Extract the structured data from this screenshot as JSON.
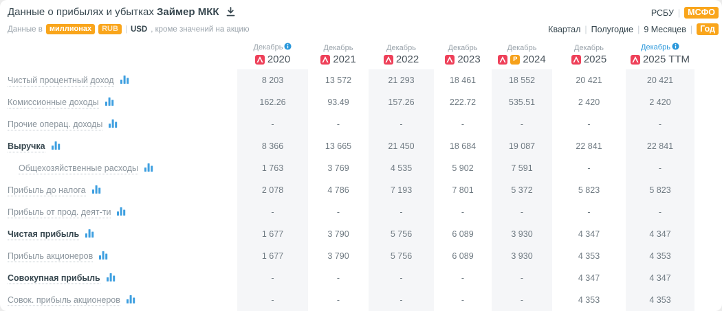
{
  "header": {
    "title_prefix": "Данные о прибылях и убытках",
    "company": "Займер МКК",
    "standards": {
      "options": [
        "РСБУ",
        "МСФО"
      ],
      "selected": "МСФО"
    },
    "subtitle": {
      "prefix": "Данные в",
      "units_badge": "миллионах",
      "currency_selected": "RUB",
      "currency_alt": "USD",
      "suffix": ", кроме значений на акцию"
    },
    "periods": {
      "items": [
        "Квартал",
        "Полугодие",
        "9 Месяцев",
        "Год"
      ],
      "selected": "Год"
    }
  },
  "table": {
    "columns": [
      {
        "month": "Декабрь",
        "year": "2020",
        "info": true,
        "month_link": false,
        "pdf": true,
        "ppt": false,
        "striped": true
      },
      {
        "month": "Декабрь",
        "year": "2021",
        "info": false,
        "month_link": false,
        "pdf": true,
        "ppt": false,
        "striped": false
      },
      {
        "month": "Декабрь",
        "year": "2022",
        "info": false,
        "month_link": false,
        "pdf": true,
        "ppt": false,
        "striped": true
      },
      {
        "month": "Декабрь",
        "year": "2023",
        "info": false,
        "month_link": false,
        "pdf": true,
        "ppt": false,
        "striped": false
      },
      {
        "month": "Декабрь",
        "year": "2024",
        "info": false,
        "month_link": false,
        "pdf": true,
        "ppt": true,
        "striped": true
      },
      {
        "month": "Декабрь",
        "year": "2025",
        "info": false,
        "month_link": false,
        "pdf": true,
        "ppt": false,
        "striped": false
      },
      {
        "month": "Декабрь",
        "year": "2025 TTM",
        "info": true,
        "month_link": true,
        "pdf": true,
        "ppt": false,
        "striped": true
      }
    ],
    "rows": [
      {
        "label": "Чистый процентный доход",
        "bold": false,
        "indent": false,
        "values": [
          "8 203",
          "13 572",
          "21 293",
          "18 461",
          "18 552",
          "20 421",
          "20 421"
        ]
      },
      {
        "label": "Комиссионные доходы",
        "bold": false,
        "indent": false,
        "values": [
          "162.26",
          "93.49",
          "157.26",
          "222.72",
          "535.51",
          "2 420",
          "2 420"
        ]
      },
      {
        "label": "Прочие операц. доходы",
        "bold": false,
        "indent": false,
        "values": [
          "-",
          "-",
          "-",
          "-",
          "-",
          "-",
          "-"
        ]
      },
      {
        "label": "Выручка",
        "bold": true,
        "indent": false,
        "values": [
          "8 366",
          "13 665",
          "21 450",
          "18 684",
          "19 087",
          "22 841",
          "22 841"
        ]
      },
      {
        "label": "Общехозяйственные расходы",
        "bold": false,
        "indent": true,
        "values": [
          "1 763",
          "3 769",
          "4 535",
          "5 902",
          "7 591",
          "-",
          "-"
        ]
      },
      {
        "label": "Прибыль до налога",
        "bold": false,
        "indent": false,
        "values": [
          "2 078",
          "4 786",
          "7 193",
          "7 801",
          "5 372",
          "5 823",
          "5 823"
        ]
      },
      {
        "label": "Прибыль от прод. деят-ти",
        "bold": false,
        "indent": false,
        "values": [
          "-",
          "-",
          "-",
          "-",
          "-",
          "-",
          "-"
        ]
      },
      {
        "label": "Чистая прибыль",
        "bold": true,
        "indent": false,
        "values": [
          "1 677",
          "3 790",
          "5 756",
          "6 089",
          "3 930",
          "4 347",
          "4 347"
        ]
      },
      {
        "label": "Прибыль акционеров",
        "bold": false,
        "indent": false,
        "values": [
          "1 677",
          "3 790",
          "5 756",
          "6 089",
          "3 930",
          "4 353",
          "4 353"
        ]
      },
      {
        "label": "Совокупная прибыль",
        "bold": true,
        "indent": false,
        "values": [
          "-",
          "-",
          "-",
          "-",
          "-",
          "4 347",
          "4 347"
        ]
      },
      {
        "label": "Совок. прибыль акционеров",
        "bold": false,
        "indent": false,
        "values": [
          "-",
          "-",
          "-",
          "-",
          "-",
          "4 353",
          "4 353"
        ]
      }
    ]
  },
  "icons": {
    "download": "download-icon",
    "bar_chart": "bar-chart-icon",
    "info": "info-icon",
    "pdf": "pdf-file-icon",
    "ppt_label": "P"
  },
  "colors": {
    "accent_orange": "#F9A51B",
    "link_blue": "#2B98DB",
    "pdf_red": "#EE4059",
    "ppt_orange": "#F6A11B",
    "text_dark": "#37474F",
    "text_gray": "#8B959D",
    "stripe_gray": "#F5F6F8"
  }
}
